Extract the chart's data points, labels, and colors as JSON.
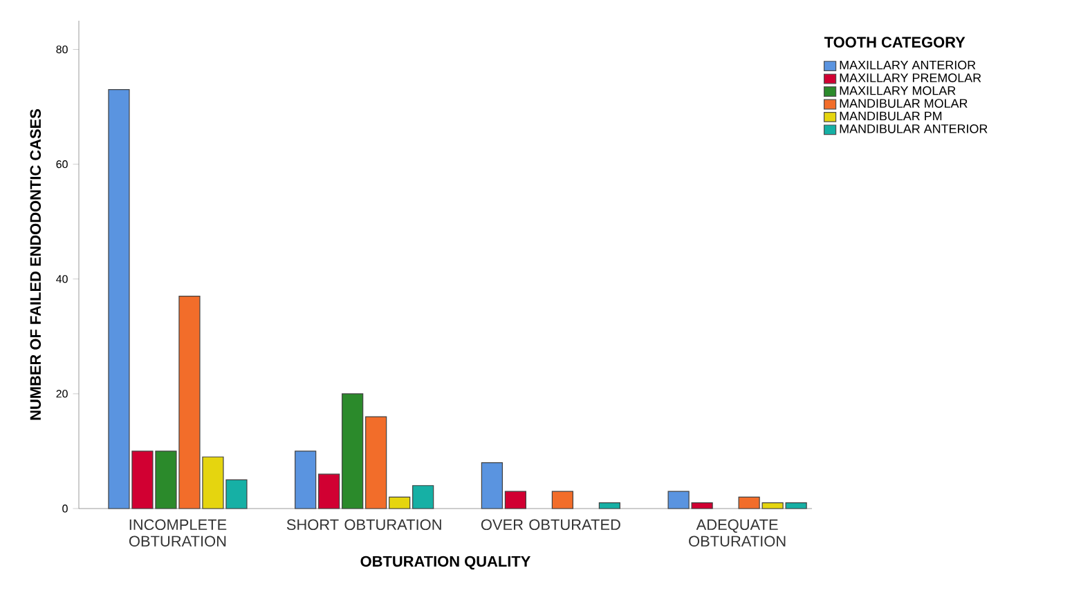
{
  "chart_data": {
    "type": "bar",
    "xlabel": "OBTURATION QUALITY",
    "ylabel": "NUMBER OF FAILED ENDODONTIC CASES",
    "legend_title": "TOOTH CATEGORY",
    "categories": [
      "INCOMPLETE OBTURATION",
      "SHORT OBTURATION",
      "OVER OBTURATED",
      "ADEQUATE OBTURATION"
    ],
    "series": [
      {
        "name": "MAXILLARY ANTERIOR",
        "color": "#5a94e0",
        "values": [
          73,
          10,
          8,
          3
        ]
      },
      {
        "name": "MAXILLARY PREMOLAR",
        "color": "#d10032",
        "values": [
          10,
          6,
          3,
          1
        ]
      },
      {
        "name": "MAXILLARY MOLAR",
        "color": "#2b8a2b",
        "values": [
          10,
          20,
          null,
          null
        ]
      },
      {
        "name": "MANDIBULAR MOLAR",
        "color": "#f26d2a",
        "values": [
          37,
          16,
          3,
          2
        ]
      },
      {
        "name": "MANDIBULAR PM",
        "color": "#e5d50f",
        "values": [
          9,
          2,
          null,
          1
        ]
      },
      {
        "name": "MANDIBULAR ANTERIOR",
        "color": "#16b0a5",
        "values": [
          5,
          4,
          1,
          1
        ]
      }
    ],
    "ylim": [
      0,
      85
    ],
    "yticks": [
      0,
      20,
      40,
      60,
      80
    ],
    "grid": false,
    "legend": "top right"
  }
}
